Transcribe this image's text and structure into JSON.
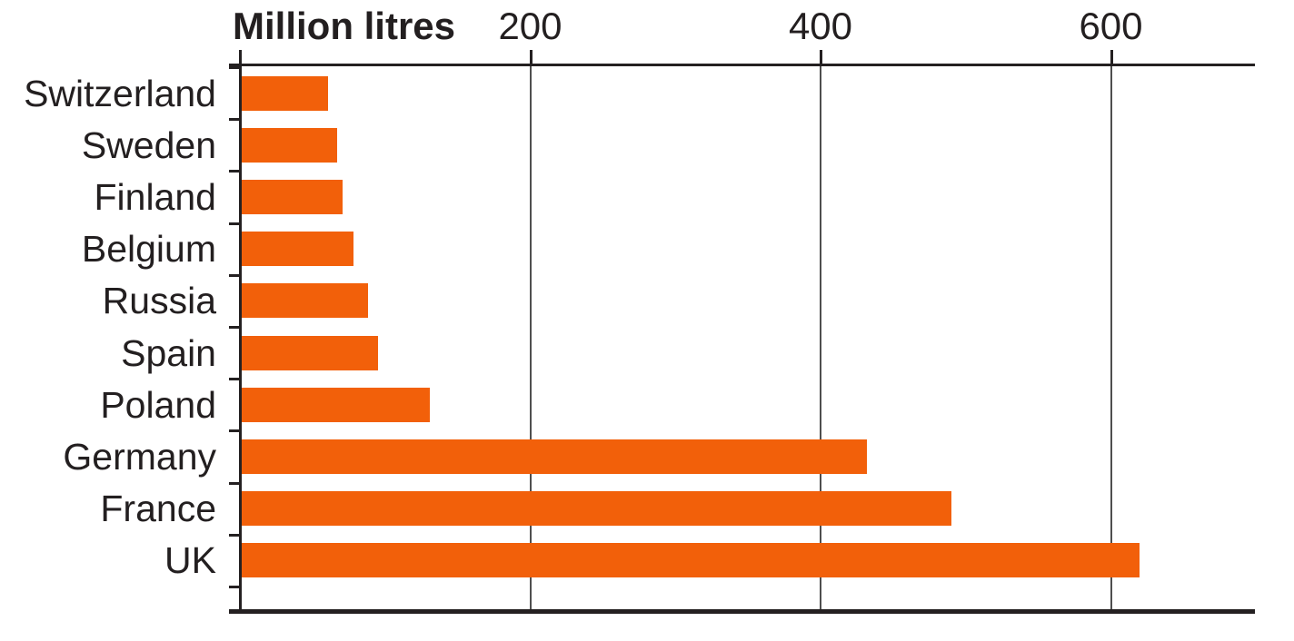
{
  "chart_data": {
    "type": "bar",
    "orientation": "horizontal",
    "title": "Million litres",
    "categories": [
      "Switzerland",
      "Sweden",
      "Finland",
      "Belgium",
      "Russia",
      "Spain",
      "Poland",
      "Germany",
      "France",
      "UK"
    ],
    "values": [
      61,
      67,
      71,
      78,
      88,
      95,
      131,
      432,
      490,
      620
    ],
    "x_ticks": [
      200,
      400,
      600
    ],
    "x_tick_labels": [
      "200",
      "400",
      "600"
    ],
    "xlim": [
      0,
      700
    ],
    "grid": true,
    "legend": "none",
    "colors": {
      "bar": "#F2600A",
      "axis": "#242021",
      "gridline": "#4F4F4F",
      "text": "#231F20"
    }
  }
}
